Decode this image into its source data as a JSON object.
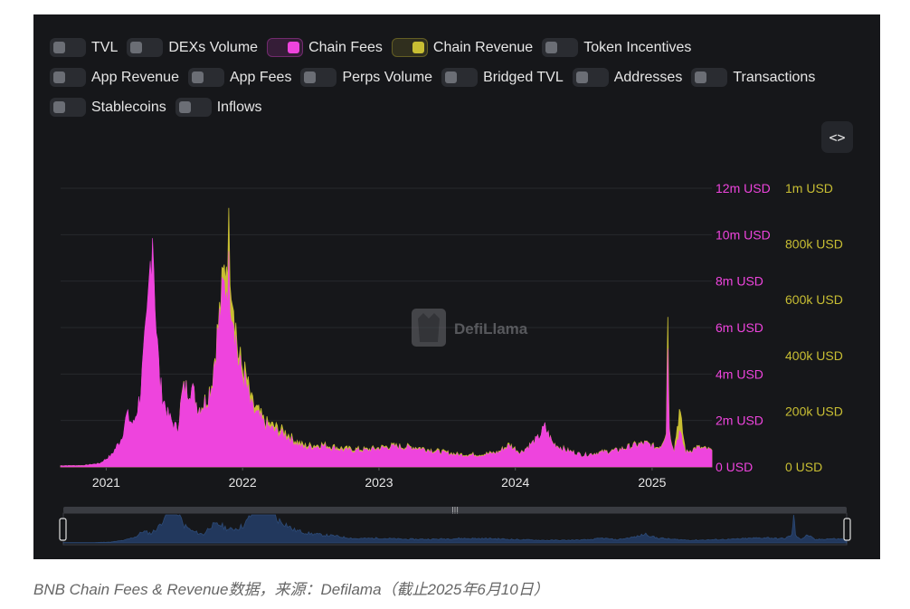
{
  "toggles": [
    [
      {
        "label": "TVL",
        "on": false
      },
      {
        "label": "DEXs Volume",
        "on": false
      },
      {
        "label": "Chain Fees",
        "on": true,
        "color": "#ee44dd"
      },
      {
        "label": "Chain Revenue",
        "on": true,
        "color": "#c8be33"
      },
      {
        "label": "Token Incentives",
        "on": false
      }
    ],
    [
      {
        "label": "App Revenue",
        "on": false
      },
      {
        "label": "App Fees",
        "on": false
      },
      {
        "label": "Perps Volume",
        "on": false
      },
      {
        "label": "Bridged TVL",
        "on": false
      },
      {
        "label": "Addresses",
        "on": false
      },
      {
        "label": "Transactions",
        "on": false
      }
    ],
    [
      {
        "label": "Stablecoins",
        "on": false
      },
      {
        "label": "Inflows",
        "on": false
      }
    ]
  ],
  "embed_button": "<>",
  "watermark": "DefiLlama",
  "caption": "BNB Chain Fees & Revenue数据，来源：Defilama（截止2025年6月10日）",
  "chart_data": {
    "type": "area",
    "x_ticks": [
      "2021",
      "2022",
      "2023",
      "2024",
      "2025"
    ],
    "y_left_ticks": [
      "0 USD",
      "2m USD",
      "4m USD",
      "6m USD",
      "8m USD",
      "10m USD",
      "12m USD"
    ],
    "y_right_ticks": [
      "0 USD",
      "200k USD",
      "400k USD",
      "600k USD",
      "800k USD",
      "1m USD"
    ],
    "y_left_range": [
      0,
      12000000
    ],
    "y_right_range": [
      0,
      1000000
    ],
    "x_range": [
      "2020-09-01",
      "2025-06-10"
    ],
    "grid": true,
    "colors": {
      "fees": "#ee44dd",
      "revenue": "#c8be33",
      "navigator": "#2b4f8a"
    },
    "series": [
      {
        "name": "Chain Fees",
        "axis": "left",
        "points": [
          [
            "2020-09-01",
            50000
          ],
          [
            "2020-11-01",
            60000
          ],
          [
            "2020-12-15",
            150000
          ],
          [
            "2021-01-15",
            500000
          ],
          [
            "2021-02-10",
            1200000
          ],
          [
            "2021-02-25",
            2200000
          ],
          [
            "2021-03-15",
            1800000
          ],
          [
            "2021-04-01",
            3000000
          ],
          [
            "2021-04-20",
            6000000
          ],
          [
            "2021-05-05",
            10500000
          ],
          [
            "2021-05-15",
            6000000
          ],
          [
            "2021-05-25",
            3500000
          ],
          [
            "2021-06-15",
            2200000
          ],
          [
            "2021-07-10",
            1600000
          ],
          [
            "2021-07-25",
            3200000
          ],
          [
            "2021-08-15",
            3500000
          ],
          [
            "2021-09-05",
            2500000
          ],
          [
            "2021-09-25",
            2800000
          ],
          [
            "2021-10-10",
            3500000
          ],
          [
            "2021-10-25",
            5500000
          ],
          [
            "2021-11-10",
            7500000
          ],
          [
            "2021-11-25",
            8200000
          ],
          [
            "2021-12-05",
            7000000
          ],
          [
            "2021-12-20",
            4500000
          ],
          [
            "2022-01-10",
            3500000
          ],
          [
            "2022-01-25",
            2500000
          ],
          [
            "2022-02-10",
            2200000
          ],
          [
            "2022-03-01",
            1800000
          ],
          [
            "2022-04-01",
            1500000
          ],
          [
            "2022-05-01",
            1300000
          ],
          [
            "2022-05-15",
            1100000
          ],
          [
            "2022-06-15",
            800000
          ],
          [
            "2022-08-01",
            900000
          ],
          [
            "2022-10-01",
            700000
          ],
          [
            "2022-12-01",
            700000
          ],
          [
            "2023-02-01",
            850000
          ],
          [
            "2023-04-15",
            800000
          ],
          [
            "2023-06-01",
            650000
          ],
          [
            "2023-08-01",
            500000
          ],
          [
            "2023-10-01",
            500000
          ],
          [
            "2023-11-15",
            600000
          ],
          [
            "2023-12-15",
            900000
          ],
          [
            "2024-01-15",
            600000
          ],
          [
            "2024-03-01",
            1200000
          ],
          [
            "2024-03-20",
            1700000
          ],
          [
            "2024-04-10",
            1000000
          ],
          [
            "2024-05-15",
            700000
          ],
          [
            "2024-07-01",
            500000
          ],
          [
            "2024-08-15",
            600000
          ],
          [
            "2024-10-01",
            700000
          ],
          [
            "2024-11-15",
            900000
          ],
          [
            "2024-12-15",
            1000000
          ],
          [
            "2025-01-10",
            800000
          ],
          [
            "2025-01-25",
            900000
          ],
          [
            "2025-02-08",
            1500000
          ],
          [
            "2025-02-12",
            5400000
          ],
          [
            "2025-02-16",
            1500000
          ],
          [
            "2025-03-01",
            700000
          ],
          [
            "2025-03-15",
            1500000
          ],
          [
            "2025-04-01",
            600000
          ],
          [
            "2025-05-01",
            800000
          ],
          [
            "2025-06-10",
            700000
          ]
        ]
      },
      {
        "name": "Chain Revenue",
        "axis": "right",
        "points": [
          [
            "2020-09-01",
            4000
          ],
          [
            "2020-11-01",
            5000
          ],
          [
            "2020-12-15",
            12000
          ],
          [
            "2021-01-15",
            40000
          ],
          [
            "2021-02-10",
            90000
          ],
          [
            "2021-02-25",
            170000
          ],
          [
            "2021-03-15",
            140000
          ],
          [
            "2021-04-01",
            240000
          ],
          [
            "2021-04-20",
            480000
          ],
          [
            "2021-05-05",
            830000
          ],
          [
            "2021-05-15",
            480000
          ],
          [
            "2021-05-25",
            280000
          ],
          [
            "2021-06-15",
            180000
          ],
          [
            "2021-07-10",
            130000
          ],
          [
            "2021-07-25",
            270000
          ],
          [
            "2021-08-15",
            290000
          ],
          [
            "2021-09-05",
            210000
          ],
          [
            "2021-09-25",
            240000
          ],
          [
            "2021-10-10",
            300000
          ],
          [
            "2021-10-25",
            470000
          ],
          [
            "2021-11-10",
            660000
          ],
          [
            "2021-11-25",
            820000
          ],
          [
            "2021-12-05",
            650000
          ],
          [
            "2021-12-20",
            400000
          ],
          [
            "2022-01-10",
            320000
          ],
          [
            "2022-01-25",
            230000
          ],
          [
            "2022-02-10",
            200000
          ],
          [
            "2022-03-01",
            160000
          ],
          [
            "2022-04-01",
            140000
          ],
          [
            "2022-05-01",
            120000
          ],
          [
            "2022-05-15",
            100000
          ],
          [
            "2022-06-15",
            75000
          ],
          [
            "2022-08-01",
            80000
          ],
          [
            "2022-10-01",
            65000
          ],
          [
            "2022-12-01",
            62000
          ],
          [
            "2023-02-01",
            75000
          ],
          [
            "2023-04-15",
            70000
          ],
          [
            "2023-06-01",
            58000
          ],
          [
            "2023-08-01",
            45000
          ],
          [
            "2023-10-01",
            45000
          ],
          [
            "2023-11-15",
            52000
          ],
          [
            "2023-12-15",
            80000
          ],
          [
            "2024-01-15",
            52000
          ],
          [
            "2024-03-01",
            100000
          ],
          [
            "2024-03-20",
            140000
          ],
          [
            "2024-04-10",
            85000
          ],
          [
            "2024-05-15",
            60000
          ],
          [
            "2024-07-01",
            42000
          ],
          [
            "2024-08-15",
            52000
          ],
          [
            "2024-10-01",
            60000
          ],
          [
            "2024-11-15",
            78000
          ],
          [
            "2024-12-15",
            85000
          ],
          [
            "2025-01-10",
            70000
          ],
          [
            "2025-01-25",
            78000
          ],
          [
            "2025-02-08",
            130000
          ],
          [
            "2025-02-12",
            570000
          ],
          [
            "2025-02-16",
            130000
          ],
          [
            "2025-03-01",
            60000
          ],
          [
            "2025-03-15",
            200000
          ],
          [
            "2025-04-01",
            52000
          ],
          [
            "2025-05-01",
            70000
          ],
          [
            "2025-06-10",
            60000
          ]
        ]
      }
    ]
  }
}
